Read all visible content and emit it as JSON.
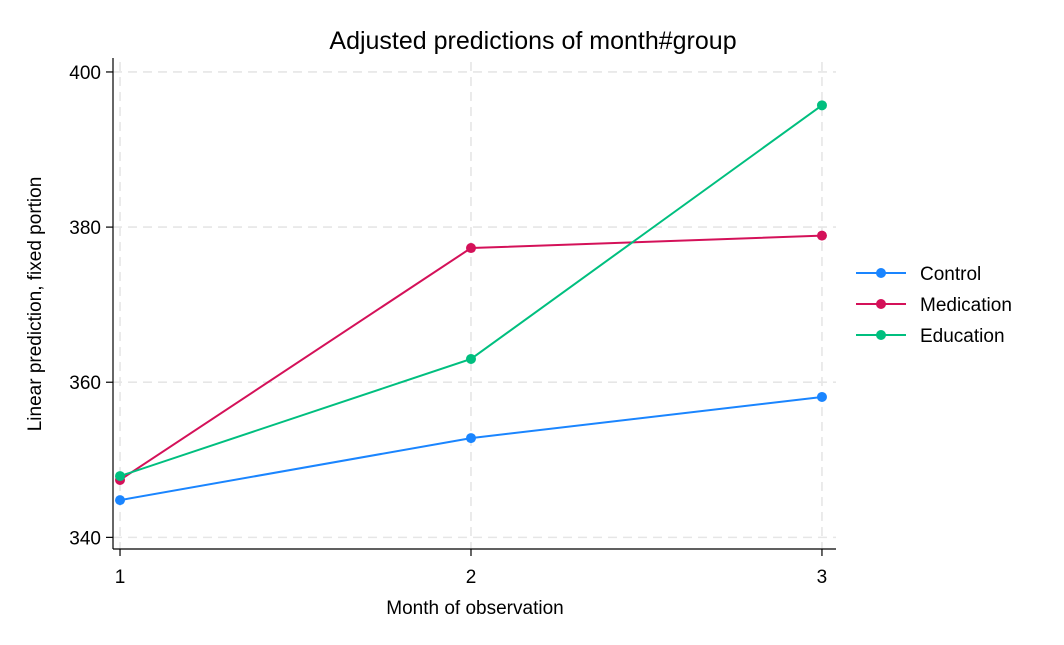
{
  "chart_data": {
    "type": "line",
    "title": "Adjusted predictions of month#group",
    "xlabel": "Month of observation",
    "ylabel": "Linear prediction, fixed portion",
    "x": [
      1,
      2,
      3
    ],
    "x_ticks": [
      "1",
      "2",
      "3"
    ],
    "xlim": [
      0.98,
      3.04
    ],
    "ylim": [
      338.5,
      401.8
    ],
    "y_ticks": [
      "340",
      "360",
      "380",
      "400"
    ],
    "grid": true,
    "legend_position": "right",
    "series": [
      {
        "name": "Control",
        "color": "#1a85ff",
        "values": [
          344.8,
          352.8,
          358.1
        ]
      },
      {
        "name": "Medication",
        "color": "#d41159",
        "values": [
          347.4,
          377.3,
          378.9
        ]
      },
      {
        "name": "Education",
        "color": "#00bf7f",
        "values": [
          347.9,
          363.0,
          395.7
        ]
      }
    ]
  }
}
